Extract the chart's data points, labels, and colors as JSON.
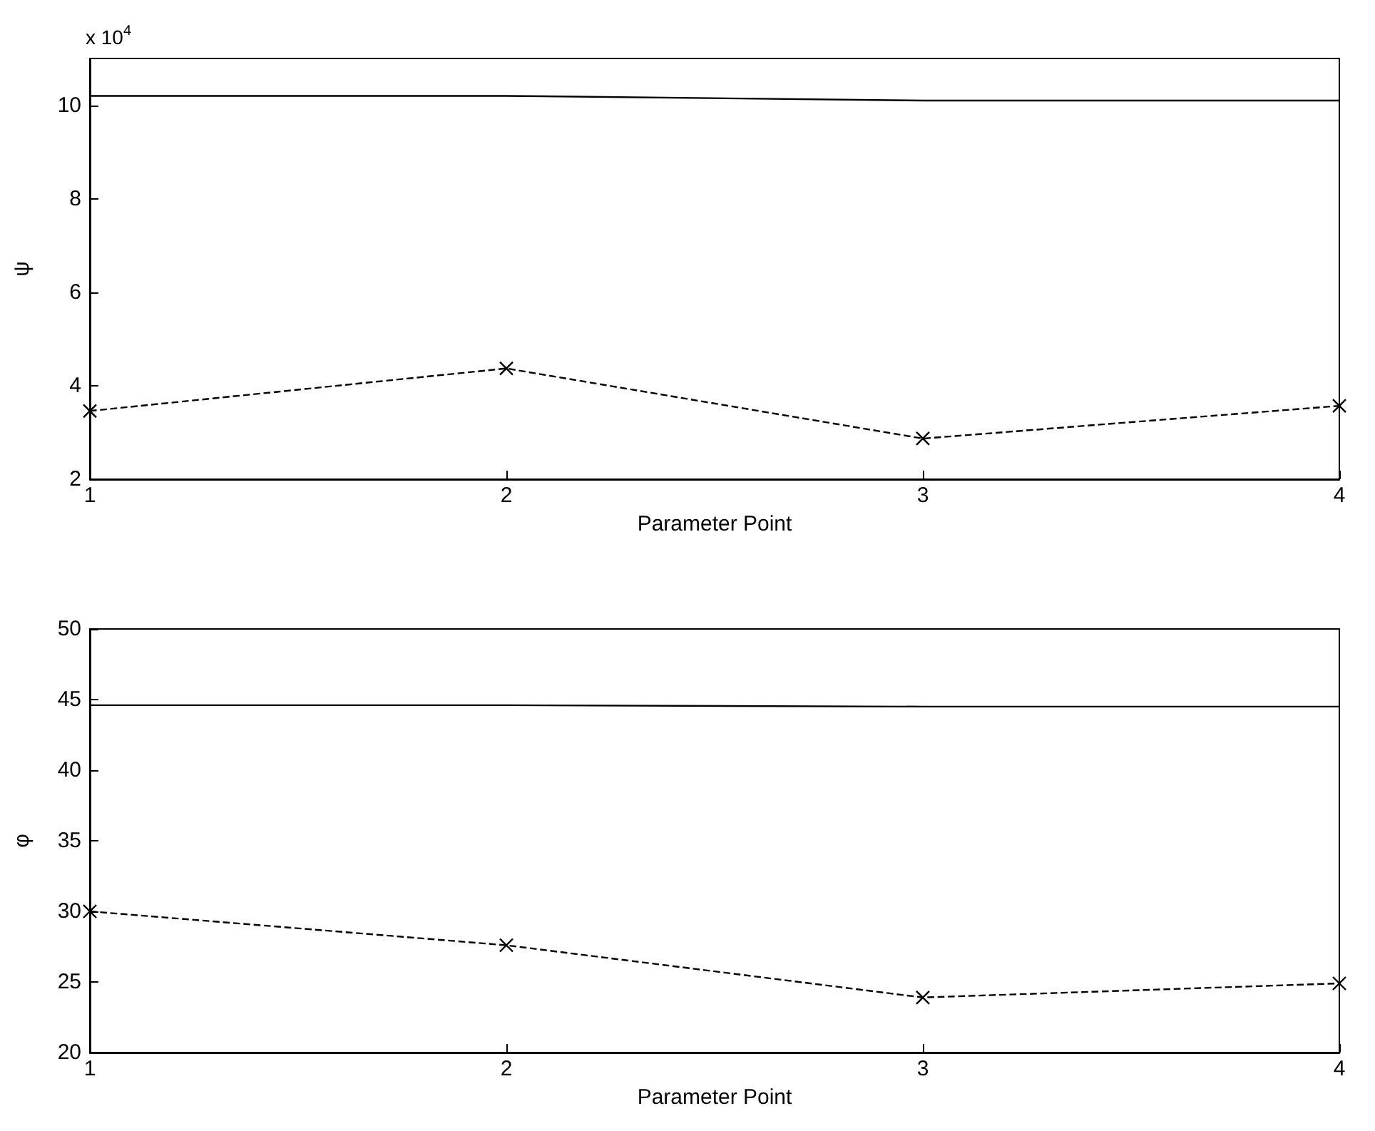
{
  "chart_data": [
    {
      "type": "line",
      "ylabel": "ψ",
      "xlabel": "Parameter Point",
      "annotations": [
        "x 10$^{4}$"
      ],
      "x": [
        1,
        2,
        3,
        4
      ],
      "xlim": [
        1,
        4
      ],
      "xticks": [
        1,
        2,
        3,
        4
      ],
      "ylim": [
        2,
        11
      ],
      "yticks": [
        2,
        4,
        6,
        8,
        10
      ],
      "series": [
        {
          "color": "#000000",
          "values": [
            10.2,
            10.2,
            10.1,
            10.1
          ],
          "marker": "none",
          "line_style": "solid"
        },
        {
          "color": "#000000",
          "values": [
            3.46,
            4.37,
            2.87,
            3.57
          ],
          "marker": "cross",
          "line_style": "dashed"
        }
      ],
      "grid": false
    },
    {
      "type": "line",
      "ylabel": "φ",
      "xlabel": "Parameter Point",
      "x": [
        1,
        2,
        3,
        4
      ],
      "xlim": [
        1,
        4
      ],
      "xticks": [
        1,
        2,
        3,
        4
      ],
      "ylim": [
        20,
        50
      ],
      "yticks": [
        20,
        25,
        30,
        35,
        40,
        45,
        50
      ],
      "series": [
        {
          "color": "#000000",
          "values": [
            44.6,
            44.6,
            44.5,
            44.5
          ],
          "marker": "none",
          "line_style": "solid"
        },
        {
          "color": "#000000",
          "values": [
            30.0,
            27.6,
            23.9,
            24.9
          ],
          "marker": "cross",
          "line_style": "dashed"
        }
      ],
      "grid": false
    }
  ]
}
